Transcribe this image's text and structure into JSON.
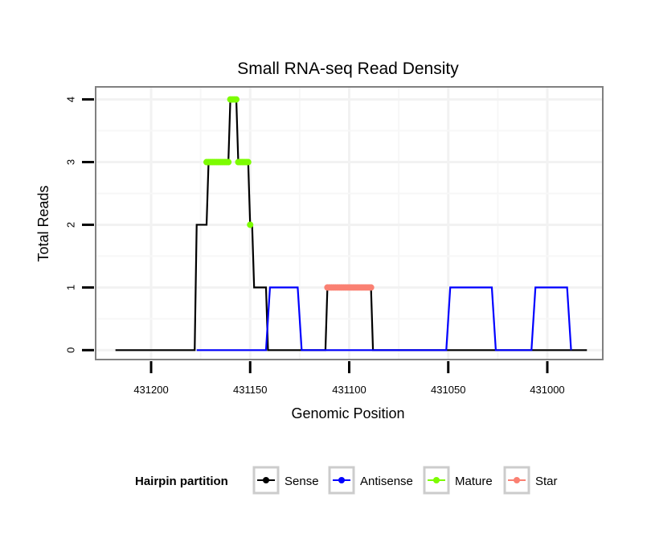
{
  "chart_data": {
    "type": "line",
    "title": "Small RNA-seq Read Density",
    "xlabel": "Genomic Position",
    "ylabel": "Total Reads",
    "x_reversed": true,
    "xlim": [
      431228,
      430972
    ],
    "ylim": [
      -0.15,
      4.2
    ],
    "x_ticks": [
      431200,
      431150,
      431100,
      431050,
      431000
    ],
    "x_tick_labels": [
      "431200",
      "431150",
      "431100",
      "431050",
      "431000"
    ],
    "y_ticks": [
      0,
      1,
      2,
      3,
      4
    ],
    "y_tick_labels": [
      "0",
      "1",
      "2",
      "3",
      "4"
    ],
    "grid": true,
    "legend": {
      "title": "Hairpin partition",
      "position": "bottom",
      "entries": [
        "Sense",
        "Antisense",
        "Mature",
        "Star"
      ]
    },
    "series": [
      {
        "name": "Sense",
        "color": "#000000",
        "style": "line",
        "points": [
          [
            431218,
            0
          ],
          [
            431178,
            0
          ],
          [
            431177,
            2
          ],
          [
            431172,
            2
          ],
          [
            431171,
            3
          ],
          [
            431161,
            3
          ],
          [
            431160,
            4
          ],
          [
            431157,
            4
          ],
          [
            431156,
            3
          ],
          [
            431151,
            3
          ],
          [
            431150,
            2
          ],
          [
            431149,
            2
          ],
          [
            431148,
            1
          ],
          [
            431142,
            1
          ],
          [
            431141,
            0
          ],
          [
            431112,
            0
          ],
          [
            431111,
            1
          ],
          [
            431089,
            1
          ],
          [
            431088,
            0
          ],
          [
            430980,
            0
          ]
        ]
      },
      {
        "name": "Antisense",
        "color": "#0000ff",
        "style": "line",
        "points": [
          [
            431177,
            0
          ],
          [
            431142,
            0
          ],
          [
            431140,
            1
          ],
          [
            431126,
            1
          ],
          [
            431124,
            0
          ],
          [
            431089,
            0
          ],
          [
            431088,
            0
          ],
          [
            431051,
            0
          ],
          [
            431049,
            1
          ],
          [
            431028,
            1
          ],
          [
            431026,
            0
          ],
          [
            431008,
            0
          ],
          [
            431006,
            1
          ],
          [
            430990,
            1
          ],
          [
            430988,
            0
          ]
        ]
      },
      {
        "name": "Mature",
        "color": "#7cfc00",
        "style": "points",
        "points": [
          [
            431172,
            3
          ],
          [
            431171,
            3
          ],
          [
            431170,
            3
          ],
          [
            431169,
            3
          ],
          [
            431168,
            3
          ],
          [
            431167,
            3
          ],
          [
            431166,
            3
          ],
          [
            431165,
            3
          ],
          [
            431164,
            3
          ],
          [
            431163,
            3
          ],
          [
            431162,
            3
          ],
          [
            431161,
            3
          ],
          [
            431160,
            4
          ],
          [
            431159,
            4
          ],
          [
            431158,
            4
          ],
          [
            431157,
            4
          ],
          [
            431156,
            3
          ],
          [
            431155,
            3
          ],
          [
            431154,
            3
          ],
          [
            431153,
            3
          ],
          [
            431152,
            3
          ],
          [
            431151,
            3
          ],
          [
            431150,
            2
          ]
        ]
      },
      {
        "name": "Star",
        "color": "#fa8072",
        "style": "points",
        "points": [
          [
            431111,
            1
          ],
          [
            431110,
            1
          ],
          [
            431109,
            1
          ],
          [
            431108,
            1
          ],
          [
            431107,
            1
          ],
          [
            431106,
            1
          ],
          [
            431105,
            1
          ],
          [
            431104,
            1
          ],
          [
            431103,
            1
          ],
          [
            431102,
            1
          ],
          [
            431101,
            1
          ],
          [
            431100,
            1
          ],
          [
            431099,
            1
          ],
          [
            431098,
            1
          ],
          [
            431097,
            1
          ],
          [
            431096,
            1
          ],
          [
            431095,
            1
          ],
          [
            431094,
            1
          ],
          [
            431093,
            1
          ],
          [
            431092,
            1
          ],
          [
            431091,
            1
          ],
          [
            431090,
            1
          ],
          [
            431089,
            1
          ]
        ]
      }
    ]
  }
}
